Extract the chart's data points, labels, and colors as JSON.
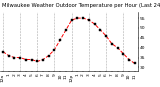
{
  "hours": [
    0,
    1,
    2,
    3,
    4,
    5,
    6,
    7,
    8,
    9,
    10,
    11,
    12,
    13,
    14,
    15,
    16,
    17,
    18,
    19,
    20,
    21,
    22,
    23
  ],
  "temps": [
    38,
    36,
    35,
    35,
    34,
    34,
    33,
    34,
    36,
    39,
    44,
    49,
    54,
    55,
    55,
    54,
    52,
    49,
    46,
    42,
    40,
    37,
    34,
    32
  ],
  "line_color": "#ff0000",
  "marker_color": "#000000",
  "grid_color": "#aaaaaa",
  "bg_color": "#ffffff",
  "title": "Milwaukee Weather Outdoor Temperature per Hour (Last 24 Hours)",
  "ylim": [
    28,
    58
  ],
  "yticks": [
    30,
    35,
    40,
    45,
    50,
    55
  ],
  "ytick_labels": [
    "30",
    "35",
    "40",
    "45",
    "50",
    "55"
  ],
  "xlabel_hours": [
    "12a",
    "1",
    "2",
    "3",
    "4",
    "5",
    "6",
    "7",
    "8",
    "9",
    "10",
    "11",
    "12p",
    "1",
    "2",
    "3",
    "4",
    "5",
    "6",
    "7",
    "8",
    "9",
    "10",
    "11"
  ],
  "title_fontsize": 3.8,
  "tick_fontsize": 3.2,
  "line_width": 0.7,
  "marker_size": 1.5,
  "grid_every": 3
}
